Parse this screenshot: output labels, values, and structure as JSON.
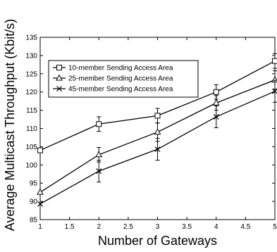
{
  "chart_data": {
    "type": "line",
    "title": "",
    "xlabel": "Number of Gateways",
    "ylabel": "Average Multicast Throughput (Kbit/s)",
    "xlim": [
      1,
      5
    ],
    "ylim": [
      85,
      135
    ],
    "x": [
      1,
      2,
      3,
      4,
      5
    ],
    "xticks": [
      "1",
      "1.5",
      "2",
      "2.5",
      "3",
      "3.5",
      "4",
      "4.5",
      "5"
    ],
    "yticks": [
      "85",
      "90",
      "95",
      "100",
      "105",
      "110",
      "115",
      "120",
      "125",
      "130",
      "135"
    ],
    "grid": false,
    "legend_position": "top-left",
    "series": [
      {
        "name": "10-member Sending Access Area",
        "marker": "square",
        "values": [
          104,
          111.2,
          113.5,
          120,
          128.5
        ],
        "errors": [
          null,
          2.0,
          2.0,
          2.0,
          2.0
        ]
      },
      {
        "name": "25-member Sending Access Area",
        "marker": "triangle",
        "values": [
          92.5,
          102.8,
          109,
          117,
          123.3
        ],
        "errors": [
          null,
          2.0,
          2.5,
          2.0,
          2.5
        ]
      },
      {
        "name": "45-member Sending Access Area",
        "marker": "x",
        "values": [
          89.3,
          98.3,
          104.3,
          113.2,
          120.2
        ],
        "errors": [
          null,
          3.0,
          3.0,
          3.0,
          3.0
        ]
      }
    ]
  }
}
